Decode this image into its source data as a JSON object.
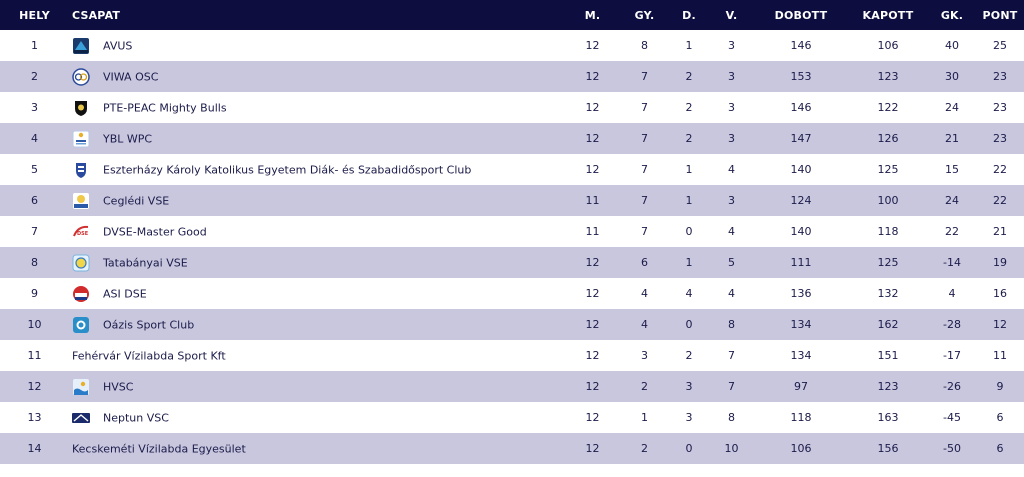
{
  "header": {
    "pos": "HELY",
    "team": "CSAPAT",
    "played": "M.",
    "won": "GY.",
    "drawn": "D.",
    "lost": "V.",
    "scored": "DOBOTT",
    "conceded": "KAPOTT",
    "diff": "GK.",
    "points": "PONT"
  },
  "rows": [
    {
      "pos": "1",
      "team": "AVUS",
      "played": "12",
      "won": "8",
      "drawn": "1",
      "lost": "3",
      "scored": "146",
      "conceded": "106",
      "diff": "40",
      "points": "25",
      "logo": "avus-logo"
    },
    {
      "pos": "2",
      "team": "VIWA OSC",
      "played": "12",
      "won": "7",
      "drawn": "2",
      "lost": "3",
      "scored": "153",
      "conceded": "123",
      "diff": "30",
      "points": "23",
      "logo": "viwa-osc-logo"
    },
    {
      "pos": "3",
      "team": "PTE-PEAC Mighty Bulls",
      "played": "12",
      "won": "7",
      "drawn": "2",
      "lost": "3",
      "scored": "146",
      "conceded": "122",
      "diff": "24",
      "points": "23",
      "logo": "pte-peac-logo"
    },
    {
      "pos": "4",
      "team": "YBL WPC",
      "played": "12",
      "won": "7",
      "drawn": "2",
      "lost": "3",
      "scored": "147",
      "conceded": "126",
      "diff": "21",
      "points": "23",
      "logo": "ybl-wpc-logo"
    },
    {
      "pos": "5",
      "team": "Eszterházy Károly Katolikus Egyetem Diák- és Szabadidősport Club",
      "played": "12",
      "won": "7",
      "drawn": "1",
      "lost": "4",
      "scored": "140",
      "conceded": "125",
      "diff": "15",
      "points": "22",
      "logo": "ekke-logo"
    },
    {
      "pos": "6",
      "team": "Ceglédi VSE",
      "played": "11",
      "won": "7",
      "drawn": "1",
      "lost": "3",
      "scored": "124",
      "conceded": "100",
      "diff": "24",
      "points": "22",
      "logo": "cegledi-vse-logo"
    },
    {
      "pos": "7",
      "team": "DVSE-Master Good",
      "played": "11",
      "won": "7",
      "drawn": "0",
      "lost": "4",
      "scored": "140",
      "conceded": "118",
      "diff": "22",
      "points": "21",
      "logo": "dvse-logo"
    },
    {
      "pos": "8",
      "team": "Tatabányai VSE",
      "played": "12",
      "won": "6",
      "drawn": "1",
      "lost": "5",
      "scored": "111",
      "conceded": "125",
      "diff": "-14",
      "points": "19",
      "logo": "tatabanyai-vse-logo"
    },
    {
      "pos": "9",
      "team": "ASI DSE",
      "played": "12",
      "won": "4",
      "drawn": "4",
      "lost": "4",
      "scored": "136",
      "conceded": "132",
      "diff": "4",
      "points": "16",
      "logo": "asi-dse-logo"
    },
    {
      "pos": "10",
      "team": "Oázis Sport Club",
      "played": "12",
      "won": "4",
      "drawn": "0",
      "lost": "8",
      "scored": "134",
      "conceded": "162",
      "diff": "-28",
      "points": "12",
      "logo": "oazis-logo"
    },
    {
      "pos": "11",
      "team": "Fehérvár Vízilabda Sport Kft",
      "played": "12",
      "won": "3",
      "drawn": "2",
      "lost": "7",
      "scored": "134",
      "conceded": "151",
      "diff": "-17",
      "points": "11",
      "logo": ""
    },
    {
      "pos": "12",
      "team": "HVSC",
      "played": "12",
      "won": "2",
      "drawn": "3",
      "lost": "7",
      "scored": "97",
      "conceded": "123",
      "diff": "-26",
      "points": "9",
      "logo": "hvsc-logo"
    },
    {
      "pos": "13",
      "team": "Neptun VSC",
      "played": "12",
      "won": "1",
      "drawn": "3",
      "lost": "8",
      "scored": "118",
      "conceded": "163",
      "diff": "-45",
      "points": "6",
      "logo": "neptun-vsc-logo"
    },
    {
      "pos": "14",
      "team": "Kecskeméti Vízilabda Egyesület",
      "played": "12",
      "won": "2",
      "drawn": "0",
      "lost": "10",
      "scored": "106",
      "conceded": "156",
      "diff": "-50",
      "points": "6",
      "logo": ""
    }
  ],
  "colors": {
    "header_bg": "#0d0d3f",
    "header_text": "#ffffff",
    "stripe": "#c9c7de",
    "text": "#1b1b4a"
  }
}
